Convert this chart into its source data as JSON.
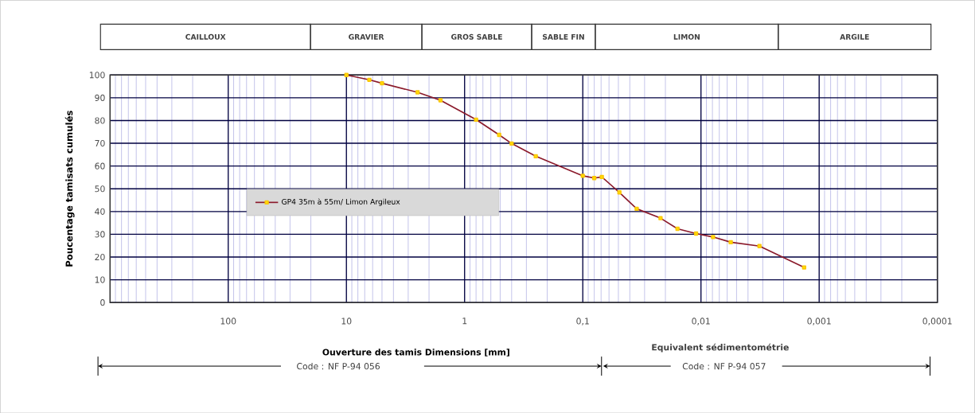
{
  "chart_data": {
    "type": "line",
    "xlabel": "Ouverture des tamis   Dimensions  [mm]",
    "ylabel": "Poucentage tamisats cumulés",
    "x": [
      10,
      6.4,
      5.0,
      2.5,
      1.6,
      0.8,
      0.51,
      0.4,
      0.25,
      0.1,
      0.08,
      0.069,
      0.049,
      0.035,
      0.022,
      0.0158,
      0.011,
      0.0079,
      0.0056,
      0.0032,
      0.00134
    ],
    "series": [
      {
        "name": "GP4 35m à 55m/ Limon Argileux",
        "color": "#8b1a2b",
        "values": [
          100,
          97.9,
          96.4,
          92.4,
          88.9,
          80.4,
          73.7,
          69.9,
          64.3,
          55.7,
          54.7,
          55.2,
          48.4,
          41.2,
          37.1,
          32.4,
          30.3,
          28.8,
          26.5,
          24.8,
          15.4
        ]
      }
    ],
    "log": "x",
    "xlim": [
      1000,
      0.0001
    ],
    "xticks": [
      100,
      10,
      1,
      {
        "value": 0.1,
        "label": "0,1"
      },
      {
        "value": 0.01,
        "label": "0,01"
      },
      {
        "value": 0.001,
        "label": "0,001"
      },
      {
        "value": 0.0001,
        "label": "0,0001"
      },
      {
        "value": 900,
        "label": null
      },
      {
        "value": 800,
        "label": null
      },
      {
        "value": 700,
        "label": null
      },
      {
        "value": 600,
        "label": null
      },
      {
        "value": 500,
        "label": null
      },
      {
        "value": 400,
        "label": null
      },
      {
        "value": 300,
        "label": null
      },
      {
        "value": 200,
        "label": null
      },
      {
        "value": 90,
        "label": null
      },
      {
        "value": 80,
        "label": null
      },
      {
        "value": 70,
        "label": null
      },
      {
        "value": 60,
        "label": null
      },
      {
        "value": 50,
        "label": null
      },
      {
        "value": 40,
        "label": null
      },
      {
        "value": 30,
        "label": null
      },
      {
        "value": 20,
        "label": null
      },
      {
        "value": 9,
        "label": null
      },
      {
        "value": 8,
        "label": null
      },
      {
        "value": 7,
        "label": null
      },
      {
        "value": 6,
        "label": null
      },
      {
        "value": 5,
        "label": null
      },
      {
        "value": 4,
        "label": null
      },
      {
        "value": 3,
        "label": null
      },
      {
        "value": 2,
        "label": null
      },
      {
        "value": 0.9,
        "label": null
      },
      {
        "value": 0.8,
        "label": null
      },
      {
        "value": 0.7,
        "label": null
      },
      {
        "value": 0.6,
        "label": null
      },
      {
        "value": 0.5,
        "label": null
      },
      {
        "value": 0.4,
        "label": null
      },
      {
        "value": 0.3,
        "label": null
      },
      {
        "value": 0.2,
        "label": null
      },
      {
        "value": 0.09,
        "label": null
      },
      {
        "value": 0.08,
        "label": null
      },
      {
        "value": 0.07,
        "label": null
      },
      {
        "value": 0.06,
        "label": null
      },
      {
        "value": 0.05,
        "label": null
      },
      {
        "value": 0.04,
        "label": null
      },
      {
        "value": 0.03,
        "label": null
      },
      {
        "value": 0.02,
        "label": null
      },
      {
        "value": 0.009,
        "label": null
      },
      {
        "value": 0.008,
        "label": null
      },
      {
        "value": 0.007,
        "label": null
      },
      {
        "value": 0.006,
        "label": null
      },
      {
        "value": 0.005,
        "label": null
      },
      {
        "value": 0.004,
        "label": null
      },
      {
        "value": 0.003,
        "label": null
      },
      {
        "value": 0.002,
        "label": null
      },
      {
        "value": 0.0009,
        "label": null
      },
      {
        "value": 0.0008,
        "label": null
      },
      {
        "value": 0.0007,
        "label": null
      },
      {
        "value": 0.0006,
        "label": null
      },
      {
        "value": 0.0005,
        "label": null
      },
      {
        "value": 0.0004,
        "label": null
      },
      {
        "value": 0.0003,
        "label": null
      },
      {
        "value": 0.0002,
        "label": null
      }
    ],
    "ylim": [
      0,
      100
    ],
    "yticks": [
      0,
      10,
      20,
      30,
      40,
      50,
      60,
      70,
      80,
      90,
      100
    ],
    "grid": true,
    "legend": "left",
    "marker": "square",
    "line_style": "solid",
    "annotations": [
      "Equivalent sédimentométrie",
      "Code : NF P-94 056",
      "Code : NF P-94 057",
      "CAILLOUX",
      "GRAVIER",
      "GROS SABLE",
      "SABLE FIN",
      "LIMON",
      "ARGILE"
    ]
  }
}
